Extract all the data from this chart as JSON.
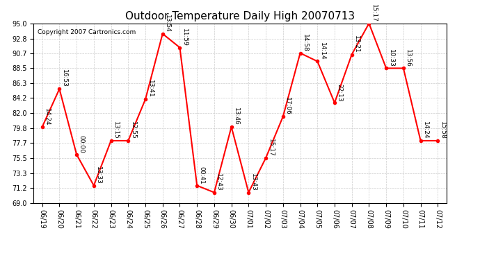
{
  "title": "Outdoor Temperature Daily High 20070713",
  "copyright": "Copyright 2007 Cartronics.com",
  "dates": [
    "06/19",
    "06/20",
    "06/21",
    "06/22",
    "06/23",
    "06/24",
    "06/25",
    "06/26",
    "06/27",
    "06/28",
    "06/29",
    "06/30",
    "07/01",
    "07/02",
    "07/03",
    "07/04",
    "07/05",
    "07/06",
    "07/07",
    "07/08",
    "07/09",
    "07/10",
    "07/11",
    "07/12"
  ],
  "temps": [
    80.0,
    85.5,
    76.0,
    71.5,
    78.0,
    78.0,
    84.0,
    93.5,
    91.5,
    71.5,
    70.5,
    80.0,
    70.5,
    75.5,
    81.5,
    90.7,
    89.5,
    83.5,
    90.5,
    95.0,
    88.5,
    88.5,
    78.0,
    78.0
  ],
  "time_labels": [
    "14:24",
    "16:53",
    "00:00",
    "13:33",
    "13:15",
    "12:55",
    "13:41",
    "13:54",
    "11:59",
    "00:41",
    "12:43",
    "13:46",
    "13:43",
    "15:17",
    "17:06",
    "14:58",
    "14:14",
    "22:13",
    "13:21",
    "15:17",
    "10:33",
    "13:56",
    "14:24",
    "15:58"
  ],
  "ylim": [
    69.0,
    95.0
  ],
  "yticks": [
    69.0,
    71.2,
    73.3,
    75.5,
    77.7,
    79.8,
    82.0,
    84.2,
    86.3,
    88.5,
    90.7,
    92.8,
    95.0
  ],
  "line_color": "red",
  "marker_color": "red",
  "bg_color": "white",
  "grid_color": "#cccccc",
  "title_fontsize": 11,
  "label_fontsize": 6.5,
  "copyright_fontsize": 6.5,
  "tick_fontsize": 7
}
